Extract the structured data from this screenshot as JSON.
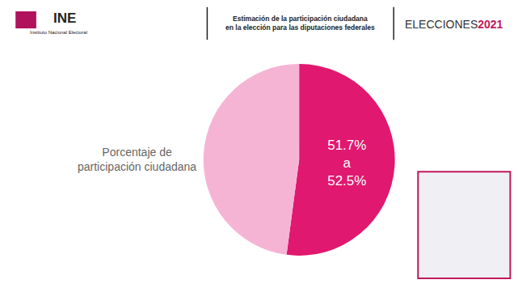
{
  "header": {
    "logo": "INE",
    "logo_subtitle": "Instituto Nacional Electoral",
    "title": "Estimación de la participación ciudadana\nen la elección para las diputaciones federales",
    "brand": "ELECCIONES",
    "brand_year": "2021"
  },
  "chart_data": {
    "type": "pie",
    "label": "Porcentaje de\nparticipación ciudadana",
    "values": [
      52.1,
      47.9
    ],
    "value_labels": [
      "51.7%\na\n52.5%",
      null
    ],
    "colors": [
      "#e0186f",
      "#f6b4d4"
    ],
    "data_labels": true
  }
}
